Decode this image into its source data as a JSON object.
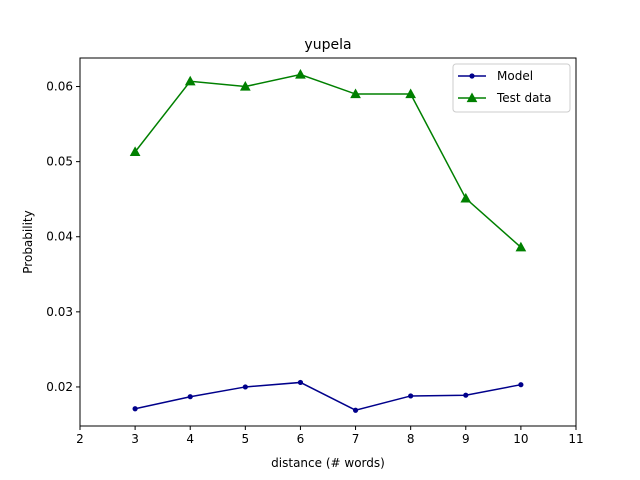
{
  "chart_data": {
    "type": "line",
    "title": "yupela",
    "xlabel": "distance (# words)",
    "ylabel": "Probability",
    "xlim": [
      2,
      11
    ],
    "ylim": [
      0.0148,
      0.0638
    ],
    "xticks": [
      2,
      3,
      4,
      5,
      6,
      7,
      8,
      9,
      10,
      11
    ],
    "yticks": [
      0.02,
      0.03,
      0.04,
      0.05,
      0.06
    ],
    "ytick_labels": [
      "0.02",
      "0.03",
      "0.04",
      "0.05",
      "0.06"
    ],
    "grid": false,
    "legend_position": "top-right",
    "x": [
      3,
      4,
      5,
      6,
      7,
      8,
      9,
      10
    ],
    "series": [
      {
        "name": "Model",
        "color": "#00008b",
        "marker": "circle",
        "values": [
          0.0171,
          0.0187,
          0.02,
          0.0206,
          0.0169,
          0.0188,
          0.0189,
          0.0203
        ]
      },
      {
        "name": "Test data",
        "color": "#008000",
        "marker": "triangle",
        "values": [
          0.0513,
          0.0607,
          0.06,
          0.0616,
          0.059,
          0.059,
          0.0451,
          0.0386
        ]
      }
    ]
  }
}
